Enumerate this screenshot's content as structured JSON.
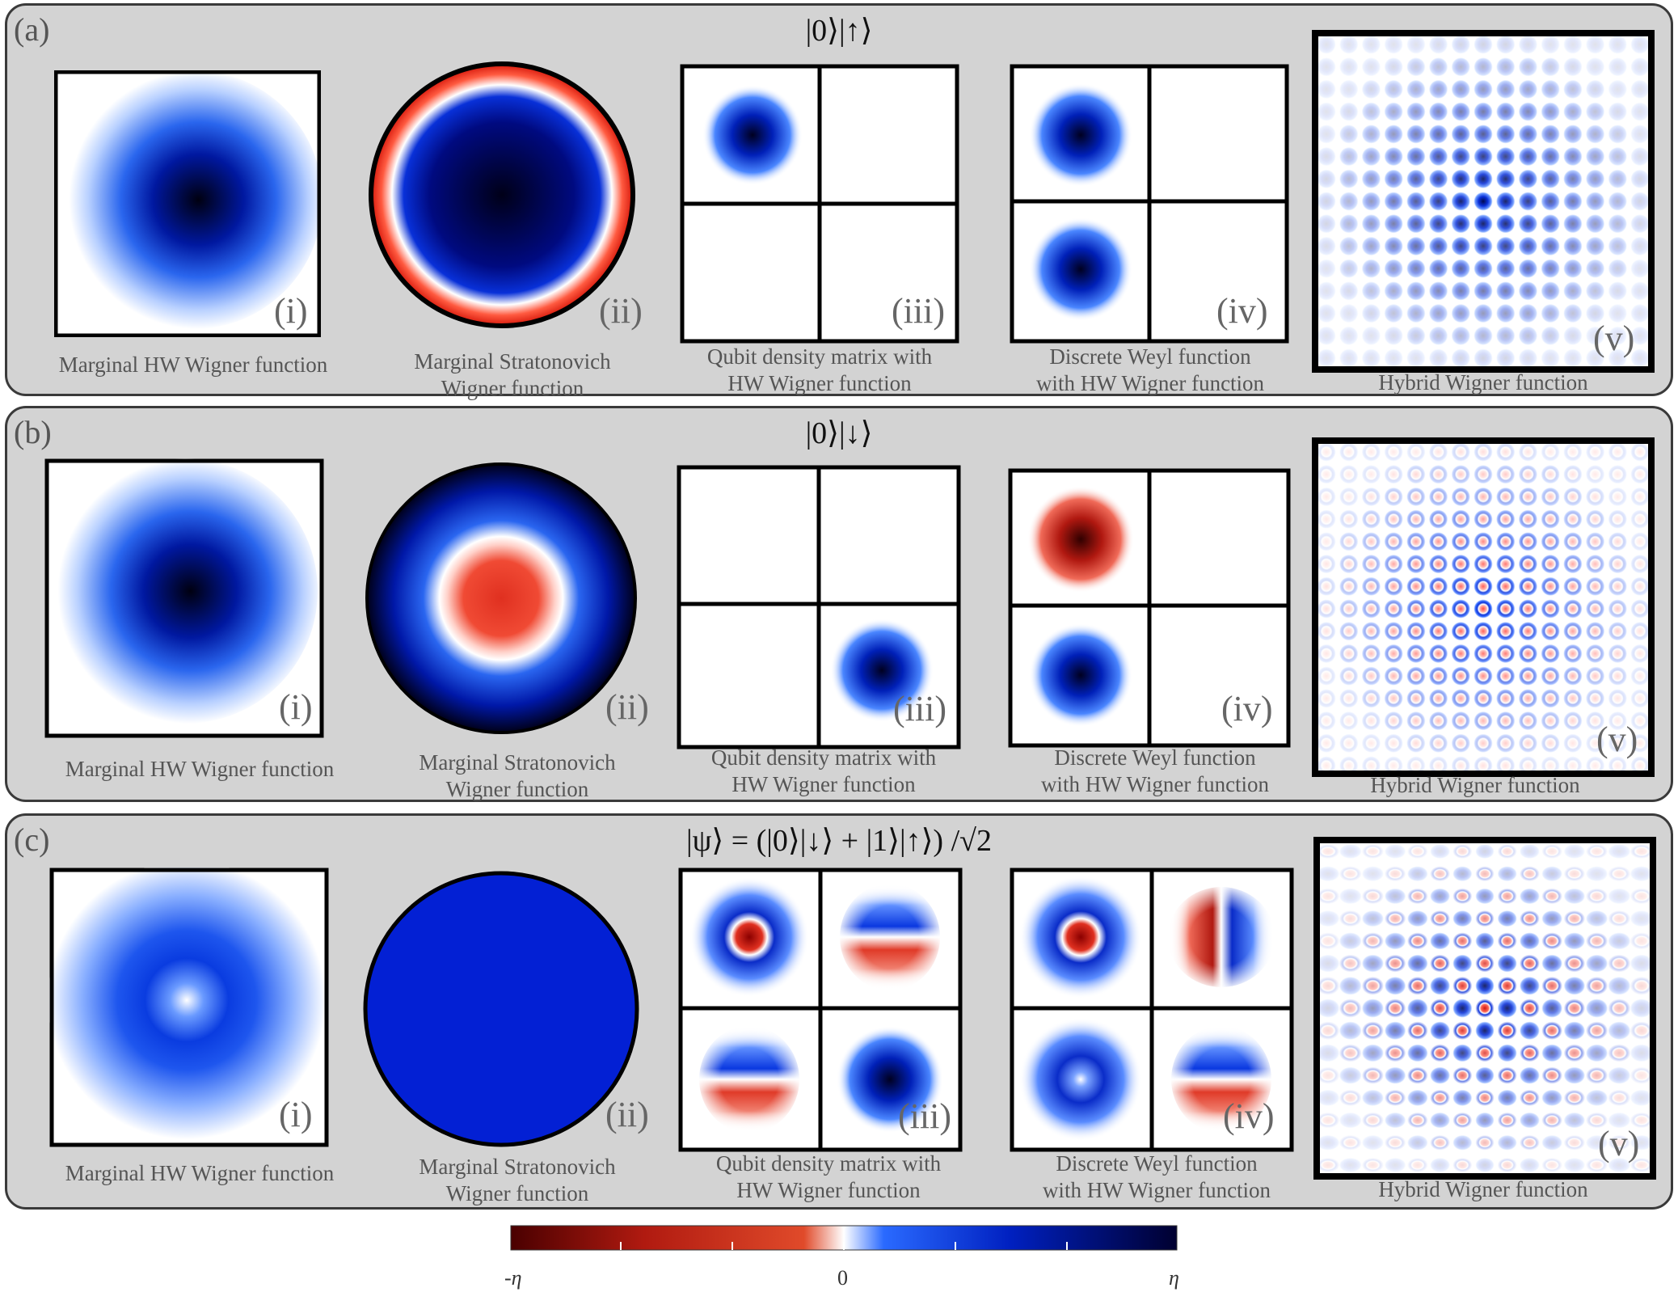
{
  "rows": [
    {
      "tag": "(a)",
      "state": "|0⟩|↑⟩",
      "panels": [
        {
          "label": "(i)",
          "caption": [
            "Marginal HW Wigner function"
          ]
        },
        {
          "label": "(ii)",
          "caption": [
            "Marginal Stratonovich",
            "Wigner function"
          ]
        },
        {
          "label": "(iii)",
          "caption": [
            "Qubit density matrix with",
            "HW Wigner function"
          ]
        },
        {
          "label": "(iv)",
          "caption": [
            "Discrete Weyl function",
            "with HW Wigner function"
          ]
        },
        {
          "label": "(v)",
          "caption": [
            "Hybrid Wigner function"
          ]
        }
      ]
    },
    {
      "tag": "(b)",
      "state": "|0⟩|↓⟩",
      "panels": [
        {
          "label": "(i)",
          "caption": [
            "Marginal HW Wigner function"
          ]
        },
        {
          "label": "(ii)",
          "caption": [
            "Marginal Stratonovich",
            "Wigner function"
          ]
        },
        {
          "label": "(iii)",
          "caption": [
            "Qubit density matrix with",
            "HW Wigner function"
          ]
        },
        {
          "label": "(iv)",
          "caption": [
            "Discrete Weyl function",
            "with HW Wigner function"
          ]
        },
        {
          "label": "(v)",
          "caption": [
            "Hybrid Wigner function"
          ]
        }
      ]
    },
    {
      "tag": "(c)",
      "state": "|ψ⟩ = (|0⟩|↓⟩ + |1⟩|↑⟩) /√2",
      "panels": [
        {
          "label": "(i)",
          "caption": [
            "Marginal HW Wigner function"
          ]
        },
        {
          "label": "(ii)",
          "caption": [
            "Marginal Stratonovich",
            "Wigner function"
          ]
        },
        {
          "label": "(iii)",
          "caption": [
            "Qubit density matrix with",
            "HW Wigner function"
          ]
        },
        {
          "label": "(iv)",
          "caption": [
            "Discrete Weyl function",
            "with HW Wigner function"
          ]
        },
        {
          "label": "(v)",
          "caption": [
            "Hybrid Wigner function"
          ]
        }
      ]
    }
  ],
  "colorbar": {
    "min_label": "-η",
    "mid_label": "0",
    "max_label": "η",
    "colors": [
      "#4a0000",
      "#b01a10",
      "#e04a2a",
      "#ffffff",
      "#2a6aff",
      "#0020c0",
      "#000030"
    ]
  }
}
